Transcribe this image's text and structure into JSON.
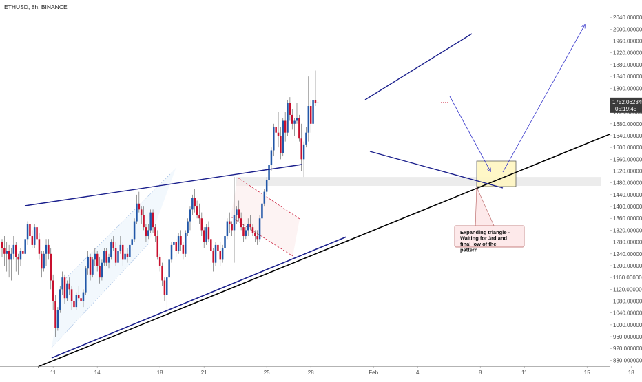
{
  "chart_data": {
    "type": "candlestick",
    "title": "ETHUSD, 8h, BINANCE",
    "ylim": [
      860,
      2080
    ],
    "y_ticks": [
      "880.000000",
      "920.000000",
      "960.000000",
      "1000.000000",
      "1040.000000",
      "1080.000000",
      "1120.000000",
      "1160.000000",
      "1200.000000",
      "1240.000000",
      "1280.000000",
      "1320.000000",
      "1360.000000",
      "1400.000000",
      "1440.000000",
      "1480.000000",
      "1520.000000",
      "1560.000000",
      "1600.000000",
      "1640.000000",
      "1680.000000",
      "1720.000000",
      "1760.000000",
      "1800.000000",
      "1840.000000",
      "1880.000000",
      "1920.000000",
      "1960.000000",
      "2000.000000",
      "2040.000000"
    ],
    "x_ticks": [
      {
        "label": "11",
        "bar": 22
      },
      {
        "label": "14",
        "bar": 41
      },
      {
        "label": "18",
        "bar": 68
      },
      {
        "label": "21",
        "bar": 87
      },
      {
        "label": "25",
        "bar": 114
      },
      {
        "label": "28",
        "bar": 133
      },
      {
        "label": "Feb",
        "bar": 160
      },
      {
        "label": "4",
        "bar": 179
      },
      {
        "label": "8",
        "bar": 206
      },
      {
        "label": "11",
        "bar": 225
      },
      {
        "label": "15",
        "bar": 252
      },
      {
        "label": "18",
        "bar": 271
      }
    ],
    "last_price": "1752.062345",
    "countdown": "05:19:45",
    "annotation": "Expanding triangle - Waiting for 3rd and final low of the pattern",
    "candles": [
      [
        1280,
        1290,
        1230,
        1260
      ],
      [
        1260,
        1300,
        1200,
        1240
      ],
      [
        1240,
        1280,
        1180,
        1250
      ],
      [
        1250,
        1270,
        1160,
        1220
      ],
      [
        1220,
        1260,
        1150,
        1240
      ],
      [
        1240,
        1300,
        1220,
        1270
      ],
      [
        1270,
        1280,
        1180,
        1230
      ],
      [
        1230,
        1240,
        1170,
        1220
      ],
      [
        1220,
        1260,
        1200,
        1250
      ],
      [
        1250,
        1280,
        1220,
        1240
      ],
      [
        1240,
        1300,
        1230,
        1290
      ],
      [
        1290,
        1350,
        1270,
        1340
      ],
      [
        1340,
        1350,
        1280,
        1300
      ],
      [
        1300,
        1320,
        1260,
        1270
      ],
      [
        1270,
        1340,
        1260,
        1330
      ],
      [
        1330,
        1350,
        1280,
        1290
      ],
      [
        1290,
        1310,
        1220,
        1240
      ],
      [
        1240,
        1250,
        1160,
        1190
      ],
      [
        1190,
        1250,
        1180,
        1240
      ],
      [
        1240,
        1290,
        1200,
        1270
      ],
      [
        1270,
        1290,
        1220,
        1240
      ],
      [
        1240,
        1260,
        1120,
        1150
      ],
      [
        1150,
        1170,
        1050,
        1080
      ],
      [
        1080,
        1100,
        960,
        990
      ],
      [
        990,
        1060,
        980,
        1050
      ],
      [
        1050,
        1130,
        1040,
        1120
      ],
      [
        1120,
        1180,
        1100,
        1160
      ],
      [
        1160,
        1170,
        1070,
        1090
      ],
      [
        1090,
        1150,
        1080,
        1140
      ],
      [
        1140,
        1160,
        1100,
        1120
      ],
      [
        1120,
        1130,
        1050,
        1080
      ],
      [
        1080,
        1120,
        1030,
        1060
      ],
      [
        1060,
        1110,
        1050,
        1100
      ],
      [
        1100,
        1130,
        1080,
        1090
      ],
      [
        1090,
        1110,
        1060,
        1080
      ],
      [
        1080,
        1120,
        1060,
        1110
      ],
      [
        1110,
        1200,
        1100,
        1190
      ],
      [
        1190,
        1250,
        1170,
        1230
      ],
      [
        1230,
        1240,
        1150,
        1170
      ],
      [
        1170,
        1230,
        1160,
        1220
      ],
      [
        1220,
        1260,
        1200,
        1240
      ],
      [
        1240,
        1250,
        1180,
        1200
      ],
      [
        1200,
        1230,
        1140,
        1160
      ],
      [
        1160,
        1220,
        1150,
        1210
      ],
      [
        1210,
        1260,
        1200,
        1250
      ],
      [
        1250,
        1260,
        1200,
        1210
      ],
      [
        1210,
        1240,
        1190,
        1230
      ],
      [
        1230,
        1290,
        1220,
        1280
      ],
      [
        1280,
        1300,
        1250,
        1260
      ],
      [
        1260,
        1280,
        1200,
        1210
      ],
      [
        1210,
        1260,
        1200,
        1250
      ],
      [
        1250,
        1300,
        1240,
        1270
      ],
      [
        1270,
        1280,
        1200,
        1220
      ],
      [
        1220,
        1250,
        1200,
        1240
      ],
      [
        1240,
        1260,
        1210,
        1230
      ],
      [
        1230,
        1280,
        1220,
        1270
      ],
      [
        1270,
        1300,
        1250,
        1290
      ],
      [
        1290,
        1360,
        1280,
        1350
      ],
      [
        1350,
        1440,
        1340,
        1410
      ],
      [
        1410,
        1450,
        1380,
        1390
      ],
      [
        1390,
        1400,
        1340,
        1370
      ],
      [
        1370,
        1400,
        1320,
        1330
      ],
      [
        1330,
        1340,
        1280,
        1300
      ],
      [
        1300,
        1340,
        1290,
        1320
      ],
      [
        1320,
        1390,
        1310,
        1380
      ],
      [
        1380,
        1390,
        1310,
        1330
      ],
      [
        1330,
        1340,
        1280,
        1300
      ],
      [
        1300,
        1320,
        1220,
        1230
      ],
      [
        1230,
        1240,
        1180,
        1200
      ],
      [
        1200,
        1210,
        1130,
        1150
      ],
      [
        1150,
        1160,
        1080,
        1100
      ],
      [
        1100,
        1170,
        1040,
        1160
      ],
      [
        1160,
        1230,
        1150,
        1220
      ],
      [
        1220,
        1280,
        1210,
        1270
      ],
      [
        1270,
        1290,
        1240,
        1280
      ],
      [
        1280,
        1290,
        1230,
        1250
      ],
      [
        1250,
        1310,
        1240,
        1300
      ],
      [
        1300,
        1320,
        1250,
        1270
      ],
      [
        1270,
        1280,
        1220,
        1240
      ],
      [
        1240,
        1320,
        1230,
        1310
      ],
      [
        1310,
        1360,
        1300,
        1350
      ],
      [
        1350,
        1400,
        1320,
        1390
      ],
      [
        1390,
        1440,
        1370,
        1430
      ],
      [
        1430,
        1460,
        1380,
        1400
      ],
      [
        1400,
        1420,
        1360,
        1370
      ],
      [
        1370,
        1410,
        1340,
        1360
      ],
      [
        1360,
        1380,
        1300,
        1320
      ],
      [
        1320,
        1330,
        1260,
        1280
      ],
      [
        1280,
        1340,
        1270,
        1330
      ],
      [
        1330,
        1350,
        1280,
        1290
      ],
      [
        1290,
        1300,
        1230,
        1250
      ],
      [
        1250,
        1260,
        1180,
        1210
      ],
      [
        1210,
        1280,
        1200,
        1270
      ],
      [
        1270,
        1300,
        1230,
        1250
      ],
      [
        1250,
        1280,
        1200,
        1220
      ],
      [
        1220,
        1270,
        1210,
        1260
      ],
      [
        1260,
        1310,
        1250,
        1300
      ],
      [
        1300,
        1360,
        1290,
        1350
      ],
      [
        1350,
        1380,
        1310,
        1340
      ],
      [
        1340,
        1350,
        1300,
        1320
      ],
      [
        1320,
        1500,
        1210,
        1370
      ],
      [
        1370,
        1400,
        1340,
        1390
      ],
      [
        1390,
        1420,
        1350,
        1360
      ],
      [
        1360,
        1380,
        1320,
        1330
      ],
      [
        1330,
        1340,
        1280,
        1300
      ],
      [
        1300,
        1330,
        1290,
        1320
      ],
      [
        1320,
        1360,
        1300,
        1340
      ],
      [
        1340,
        1370,
        1320,
        1330
      ],
      [
        1330,
        1340,
        1300,
        1310
      ],
      [
        1310,
        1320,
        1280,
        1300
      ],
      [
        1300,
        1320,
        1270,
        1290
      ],
      [
        1290,
        1370,
        1280,
        1360
      ],
      [
        1360,
        1420,
        1350,
        1410
      ],
      [
        1410,
        1460,
        1400,
        1450
      ],
      [
        1450,
        1500,
        1440,
        1490
      ],
      [
        1490,
        1560,
        1470,
        1540
      ],
      [
        1540,
        1600,
        1520,
        1590
      ],
      [
        1590,
        1680,
        1570,
        1670
      ],
      [
        1670,
        1690,
        1620,
        1650
      ],
      [
        1650,
        1720,
        1600,
        1640
      ],
      [
        1640,
        1670,
        1560,
        1580
      ],
      [
        1580,
        1700,
        1570,
        1690
      ],
      [
        1690,
        1720,
        1620,
        1650
      ],
      [
        1650,
        1760,
        1640,
        1750
      ],
      [
        1750,
        1770,
        1690,
        1710
      ],
      [
        1710,
        1730,
        1660,
        1680
      ],
      [
        1680,
        1700,
        1640,
        1690
      ],
      [
        1690,
        1750,
        1680,
        1700
      ],
      [
        1700,
        1710,
        1620,
        1630
      ],
      [
        1630,
        1680,
        1520,
        1560
      ],
      [
        1560,
        1620,
        1500,
        1610
      ],
      [
        1610,
        1670,
        1600,
        1650
      ],
      [
        1650,
        1840,
        1620,
        1740
      ],
      [
        1740,
        1760,
        1650,
        1680
      ],
      [
        1680,
        1770,
        1660,
        1760
      ],
      [
        1760,
        1860,
        1740,
        1750
      ],
      [
        1750,
        1780,
        1720,
        1752
      ]
    ],
    "levels": [
      {
        "name": "support-zone",
        "low": 1470,
        "high": 1500
      },
      {
        "name": "target-box",
        "low": 1440,
        "high": 1525
      }
    ]
  },
  "colors": {
    "up": "#2157a8",
    "down": "#c8102e",
    "trendline_blue": "#1a1f8c",
    "trendline_black": "#000000",
    "zone": "#e6e6e6",
    "target": "#fff7c2",
    "badge": "#3b3b3b",
    "note_bg": "#fde9ea",
    "note_border": "#b45b5b"
  }
}
